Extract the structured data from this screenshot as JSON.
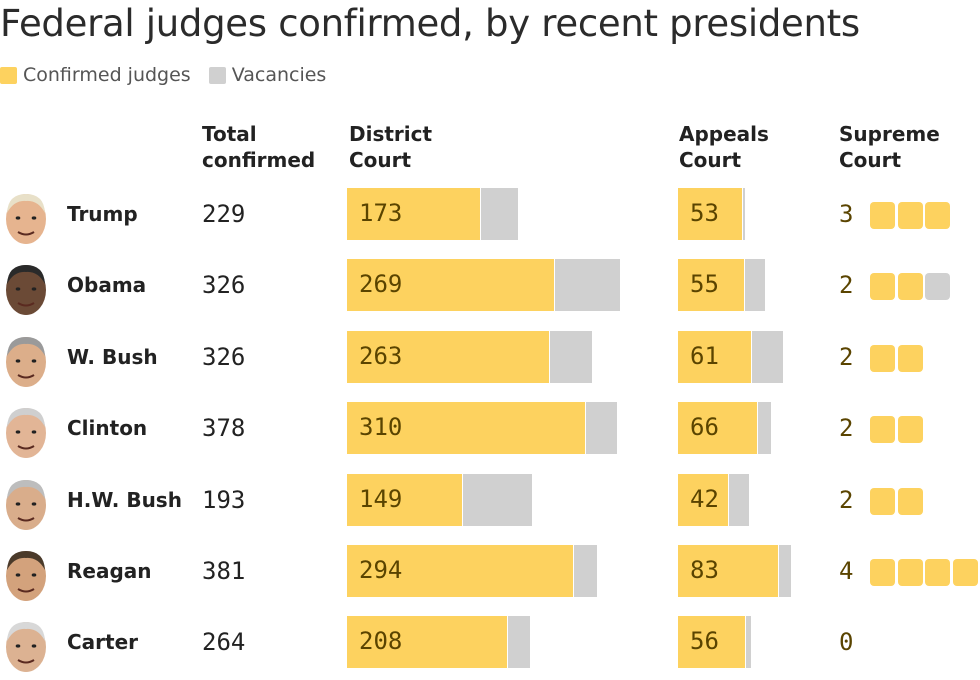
{
  "title": "Federal judges confirmed, by recent presidents",
  "legend": [
    {
      "label": "Confirmed judges",
      "color": "#fdd25f"
    },
    {
      "label": "Vacancies",
      "color": "#d0d0d0"
    }
  ],
  "colors": {
    "confirmed": "#fdd25f",
    "vacancy": "#d0d0d0",
    "label": "#5a4400"
  },
  "headers": {
    "total": [
      "Total",
      "confirmed"
    ],
    "district": [
      "District",
      "Court"
    ],
    "appeals": [
      "Appeals",
      "Court"
    ],
    "supreme": [
      "Supreme",
      "Court"
    ]
  },
  "chart_data": {
    "type": "bar",
    "categories": [
      "Trump",
      "Obama",
      "W. Bush",
      "Clinton",
      "H.W. Bush",
      "Reagan",
      "Carter"
    ],
    "total_confirmed": [
      229,
      326,
      326,
      378,
      193,
      381,
      264
    ],
    "series": [
      {
        "name": "District Court confirmed",
        "values": [
          173,
          269,
          263,
          310,
          149,
          294,
          208
        ]
      },
      {
        "name": "District Court vacancies",
        "values": [
          48,
          85,
          54,
          40,
          91,
          30,
          29
        ]
      },
      {
        "name": "Appeals Court confirmed",
        "values": [
          53,
          55,
          61,
          66,
          42,
          83,
          56
        ]
      },
      {
        "name": "Appeals Court vacancies",
        "values": [
          2,
          17,
          26,
          11,
          16,
          10,
          4
        ]
      },
      {
        "name": "Supreme Court confirmed",
        "values": [
          3,
          2,
          2,
          2,
          2,
          4,
          0
        ]
      },
      {
        "name": "Supreme Court vacancies",
        "values": [
          0,
          1,
          0,
          0,
          0,
          0,
          0
        ]
      }
    ]
  }
}
